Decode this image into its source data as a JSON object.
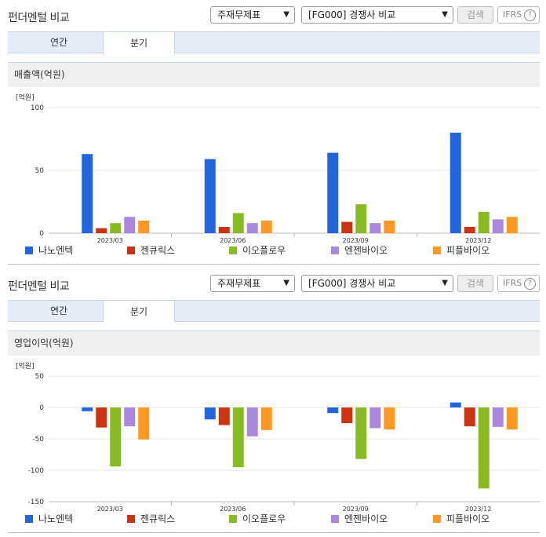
{
  "panels": [
    {
      "title": "펀더멘털 비교",
      "select1": "주재무제표",
      "select2": "[FG000] 경쟁사 비교",
      "search_label": "검색",
      "ifrs_label": "IFRS",
      "help": "?",
      "tabs": [
        {
          "label": "연간",
          "active": false
        },
        {
          "label": "분기",
          "active": true
        }
      ],
      "chart_title": "매출액(억원)",
      "unit_label": "[억원]"
    },
    {
      "title": "펀더멘털 비교",
      "select1": "주재무제표",
      "select2": "[FG000] 경쟁사 비교",
      "search_label": "검색",
      "ifrs_label": "IFRS",
      "help": "?",
      "tabs": [
        {
          "label": "연간",
          "active": false
        },
        {
          "label": "분기",
          "active": true
        }
      ],
      "chart_title": "영업이익(억원)",
      "unit_label": "[억원]"
    }
  ],
  "chart_data": [
    {
      "type": "bar",
      "title": "매출액(억원)",
      "ylabel": "[억원]",
      "categories": [
        "2023/03",
        "2023/06",
        "2023/09",
        "2023/12"
      ],
      "ylim": [
        0,
        100
      ],
      "yticks": [
        0,
        50,
        100
      ],
      "series": [
        {
          "name": "나노엔텍",
          "color": "#2266dd",
          "values": [
            63,
            59,
            64,
            80
          ]
        },
        {
          "name": "젠큐릭스",
          "color": "#cc3311",
          "values": [
            4,
            5,
            9,
            5
          ]
        },
        {
          "name": "이오플로우",
          "color": "#88bb22",
          "values": [
            8,
            16,
            23,
            17
          ]
        },
        {
          "name": "엔젠바이오",
          "color": "#aa88dd",
          "values": [
            13,
            8,
            8,
            11
          ]
        },
        {
          "name": "피플바이오",
          "color": "#ff9922",
          "values": [
            10,
            10,
            10,
            13
          ]
        }
      ],
      "legend": "bottom"
    },
    {
      "type": "bar",
      "title": "영업이익(억원)",
      "ylabel": "[억원]",
      "categories": [
        "2023/03",
        "2023/06",
        "2023/09",
        "2023/12"
      ],
      "ylim": [
        -150,
        50
      ],
      "yticks": [
        50,
        0,
        -50,
        -100,
        -150
      ],
      "series": [
        {
          "name": "나노엔텍",
          "color": "#2266dd",
          "values": [
            -6,
            -19,
            -9,
            8
          ]
        },
        {
          "name": "젠큐릭스",
          "color": "#cc3311",
          "values": [
            -32,
            -28,
            -25,
            -30
          ]
        },
        {
          "name": "이오플로우",
          "color": "#88bb22",
          "values": [
            -94,
            -95,
            -82,
            -129
          ]
        },
        {
          "name": "엔젠바이오",
          "color": "#aa88dd",
          "values": [
            -30,
            -46,
            -33,
            -31
          ]
        },
        {
          "name": "피플바이오",
          "color": "#ff9922",
          "values": [
            -51,
            -36,
            -35,
            -35
          ]
        }
      ],
      "legend": "bottom"
    }
  ]
}
